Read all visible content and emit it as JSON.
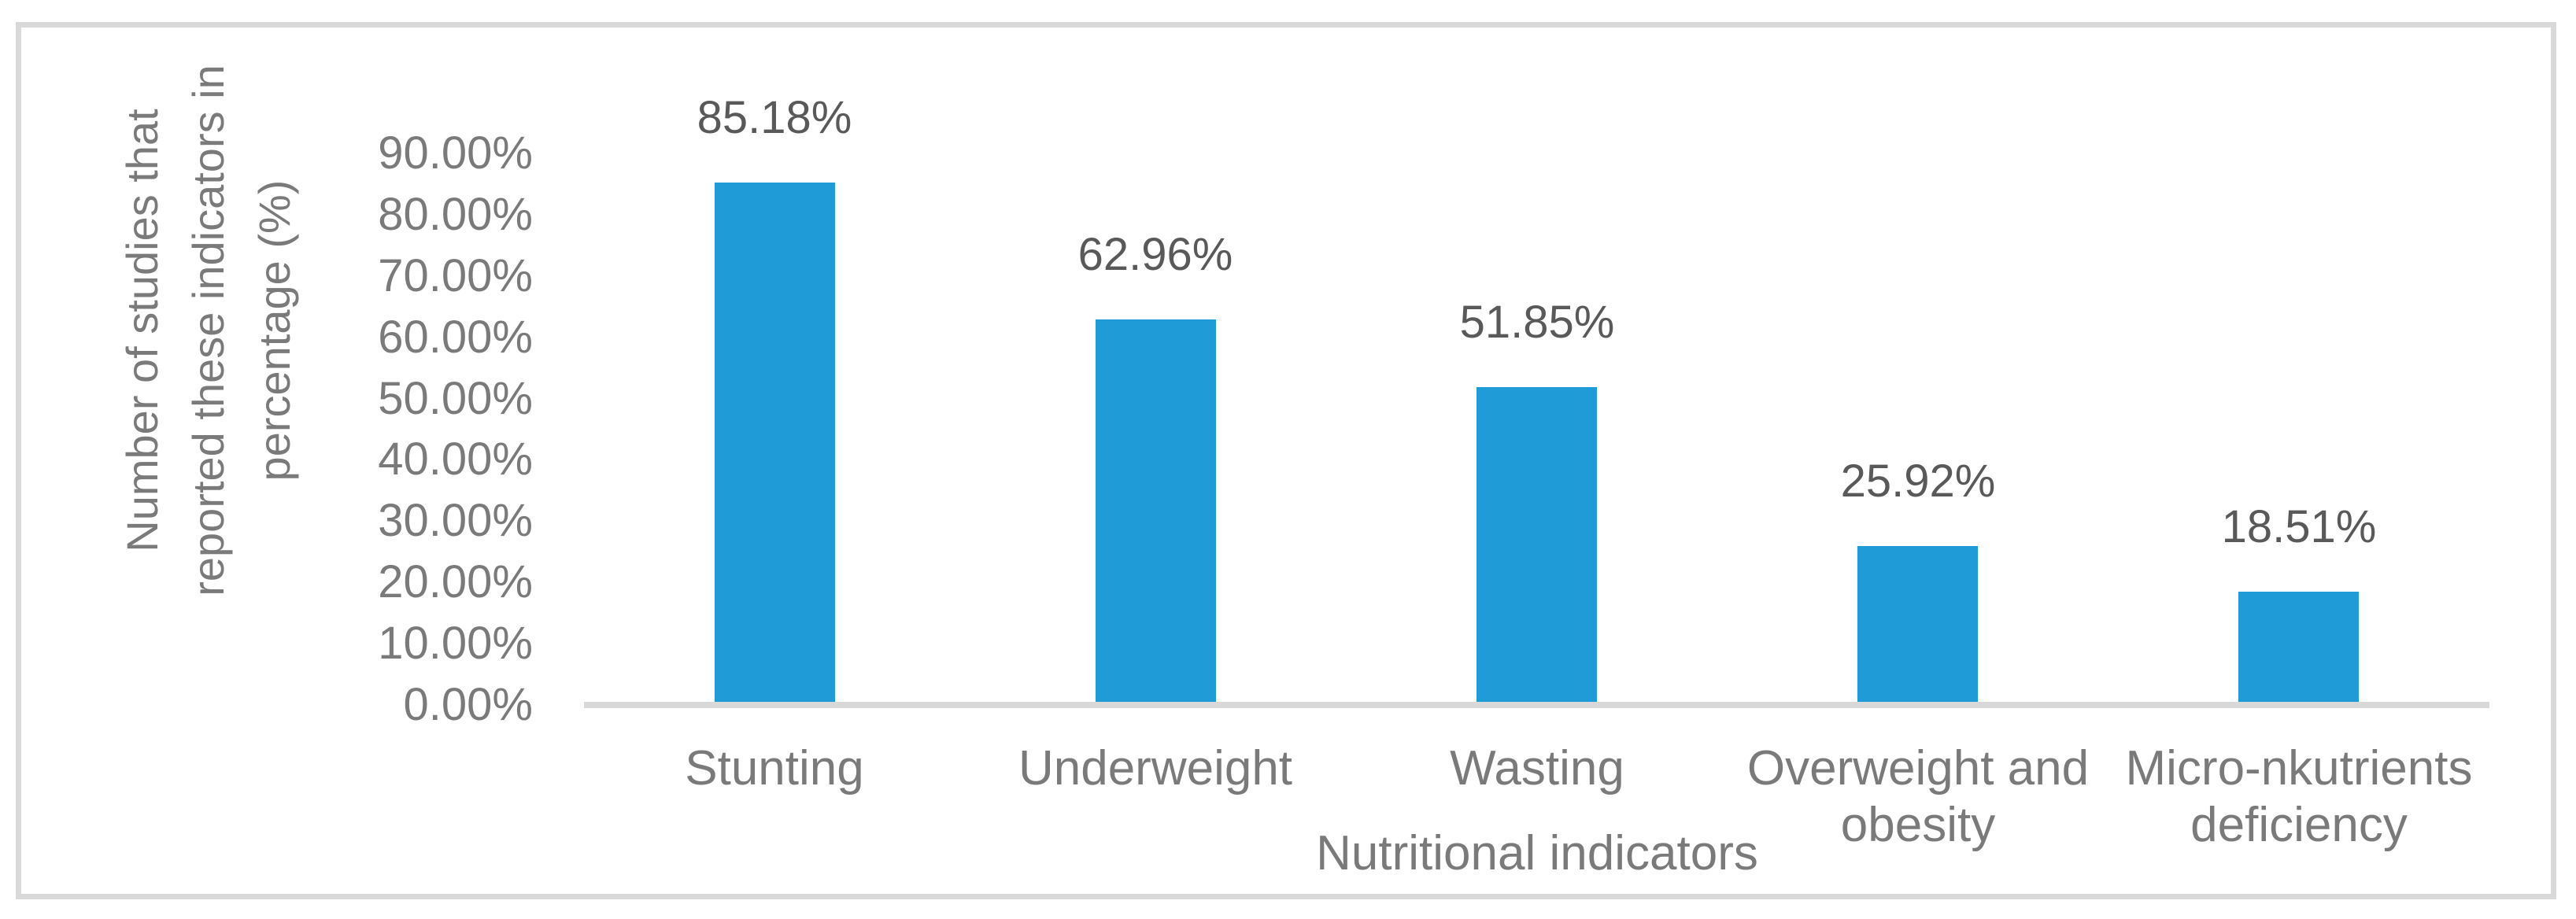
{
  "chart_data": {
    "type": "bar",
    "categories": [
      "Stunting",
      "Underweight",
      "Wasting",
      "Overweight and obesity",
      "Micro-nkutrients deficiency"
    ],
    "values": [
      85.18,
      62.96,
      51.85,
      25.92,
      18.51
    ],
    "data_labels": [
      "85.18%",
      "62.96%",
      "51.85%",
      "25.92%",
      "18.51%"
    ],
    "title": "",
    "xlabel": "Nutritional indicators",
    "ylabel": "Number of studies that\nreported these indicators in\npercentage (%)",
    "y_ticks": [
      "0.00%",
      "10.00%",
      "20.00%",
      "30.00%",
      "40.00%",
      "50.00%",
      "60.00%",
      "70.00%",
      "80.00%",
      "90.00%"
    ],
    "ylim": [
      0,
      90
    ],
    "grid": false,
    "legend": false,
    "colors": {
      "bar": "#1F9CD7",
      "axis_line": "#D9D9D9",
      "frame": "#D9D9D9",
      "tick_text": "#7A7A7A",
      "category_text": "#7A7A7A",
      "data_label_text": "#595959"
    }
  }
}
